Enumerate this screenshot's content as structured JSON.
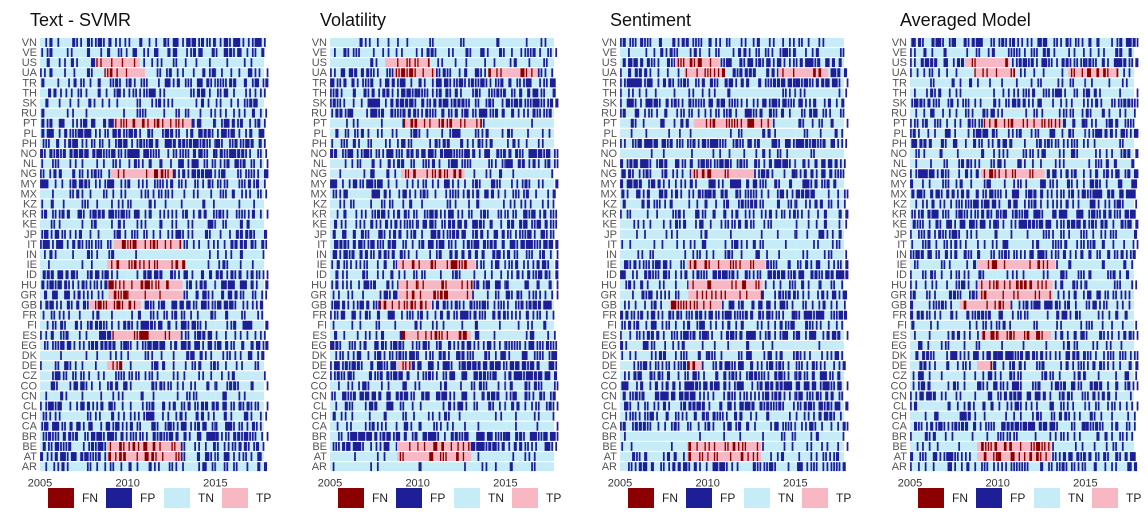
{
  "chart_data": {
    "type": "heatmap",
    "xticks": [
      2005,
      2010,
      2015
    ],
    "x_range": [
      2005,
      2018
    ],
    "countries": [
      "VN",
      "VE",
      "US",
      "UA",
      "TR",
      "TH",
      "SK",
      "RU",
      "PT",
      "PL",
      "PH",
      "NO",
      "NL",
      "NG",
      "MY",
      "MX",
      "KZ",
      "KR",
      "KE",
      "JP",
      "IT",
      "IN",
      "IE",
      "ID",
      "HU",
      "GR",
      "GB",
      "FR",
      "FI",
      "ES",
      "EG",
      "DK",
      "DE",
      "CZ",
      "CO",
      "CN",
      "CL",
      "CH",
      "CA",
      "BR",
      "BE",
      "AT",
      "AR"
    ],
    "legend": [
      {
        "label": "FN",
        "color": "#8b0000"
      },
      {
        "label": "FP",
        "color": "#1e1e96"
      },
      {
        "label": "TN",
        "color": "#c6ecf7"
      },
      {
        "label": "TP",
        "color": "#f7b8c4"
      }
    ],
    "panels": [
      {
        "title": "Text - SVMR",
        "crisis": [
          {
            "country": "US",
            "from": 2008.1,
            "to": 2010.6
          },
          {
            "country": "UA",
            "from": 2008.6,
            "to": 2010.9
          },
          {
            "country": "PT",
            "from": 2009.2,
            "to": 2013.6
          },
          {
            "country": "NG",
            "from": 2009.0,
            "to": 2012.6
          },
          {
            "country": "IT",
            "from": 2009.2,
            "to": 2013.0
          },
          {
            "country": "IE",
            "from": 2008.8,
            "to": 2013.2
          },
          {
            "country": "HU",
            "from": 2008.9,
            "to": 2013.1
          },
          {
            "country": "GR",
            "from": 2008.9,
            "to": 2013.1
          },
          {
            "country": "GB",
            "from": 2007.8,
            "to": 2010.7
          },
          {
            "country": "ES",
            "from": 2009.0,
            "to": 2013.0
          },
          {
            "country": "DE",
            "from": 2008.8,
            "to": 2009.6
          },
          {
            "country": "BE",
            "from": 2008.8,
            "to": 2013.0
          },
          {
            "country": "AT",
            "from": 2008.8,
            "to": 2013.0
          }
        ]
      },
      {
        "title": "Volatility",
        "crisis": [
          {
            "country": "US",
            "from": 2008.1,
            "to": 2010.6
          },
          {
            "country": "UA",
            "from": 2008.6,
            "to": 2010.9
          },
          {
            "country": "UA",
            "from": 2014.0,
            "to": 2016.8
          },
          {
            "country": "PT",
            "from": 2009.2,
            "to": 2013.6
          },
          {
            "country": "NG",
            "from": 2009.0,
            "to": 2012.6
          },
          {
            "country": "IE",
            "from": 2008.8,
            "to": 2013.2
          },
          {
            "country": "HU",
            "from": 2008.9,
            "to": 2013.1
          },
          {
            "country": "GR",
            "from": 2008.9,
            "to": 2013.1
          },
          {
            "country": "GB",
            "from": 2007.8,
            "to": 2010.7
          },
          {
            "country": "ES",
            "from": 2009.0,
            "to": 2013.0
          },
          {
            "country": "DE",
            "from": 2008.8,
            "to": 2009.6
          },
          {
            "country": "BE",
            "from": 2008.8,
            "to": 2013.0
          },
          {
            "country": "AT",
            "from": 2008.8,
            "to": 2013.0
          }
        ]
      },
      {
        "title": "Sentiment",
        "crisis": [
          {
            "country": "US",
            "from": 2008.1,
            "to": 2010.6
          },
          {
            "country": "UA",
            "from": 2008.6,
            "to": 2010.9
          },
          {
            "country": "UA",
            "from": 2014.0,
            "to": 2016.8
          },
          {
            "country": "PT",
            "from": 2009.2,
            "to": 2013.6
          },
          {
            "country": "NG",
            "from": 2009.0,
            "to": 2012.6
          },
          {
            "country": "IE",
            "from": 2008.8,
            "to": 2013.2
          },
          {
            "country": "HU",
            "from": 2008.9,
            "to": 2013.1
          },
          {
            "country": "GR",
            "from": 2008.9,
            "to": 2013.1
          },
          {
            "country": "GB",
            "from": 2007.8,
            "to": 2010.7
          },
          {
            "country": "DE",
            "from": 2008.8,
            "to": 2009.6
          },
          {
            "country": "BE",
            "from": 2008.8,
            "to": 2013.0
          },
          {
            "country": "AT",
            "from": 2008.8,
            "to": 2013.0
          }
        ]
      },
      {
        "title": "Averaged Model",
        "crisis": [
          {
            "country": "US",
            "from": 2008.1,
            "to": 2010.6
          },
          {
            "country": "UA",
            "from": 2008.6,
            "to": 2010.9
          },
          {
            "country": "UA",
            "from": 2014.0,
            "to": 2016.8
          },
          {
            "country": "PT",
            "from": 2009.2,
            "to": 2013.6
          },
          {
            "country": "NG",
            "from": 2009.0,
            "to": 2012.6
          },
          {
            "country": "IE",
            "from": 2008.8,
            "to": 2013.2
          },
          {
            "country": "HU",
            "from": 2008.9,
            "to": 2013.1
          },
          {
            "country": "GR",
            "from": 2008.9,
            "to": 2013.1
          },
          {
            "country": "GB",
            "from": 2007.8,
            "to": 2010.7
          },
          {
            "country": "ES",
            "from": 2009.0,
            "to": 2013.0
          },
          {
            "country": "DE",
            "from": 2008.8,
            "to": 2009.6
          },
          {
            "country": "BE",
            "from": 2008.8,
            "to": 2013.0
          },
          {
            "country": "AT",
            "from": 2008.8,
            "to": 2013.0
          }
        ]
      }
    ]
  }
}
